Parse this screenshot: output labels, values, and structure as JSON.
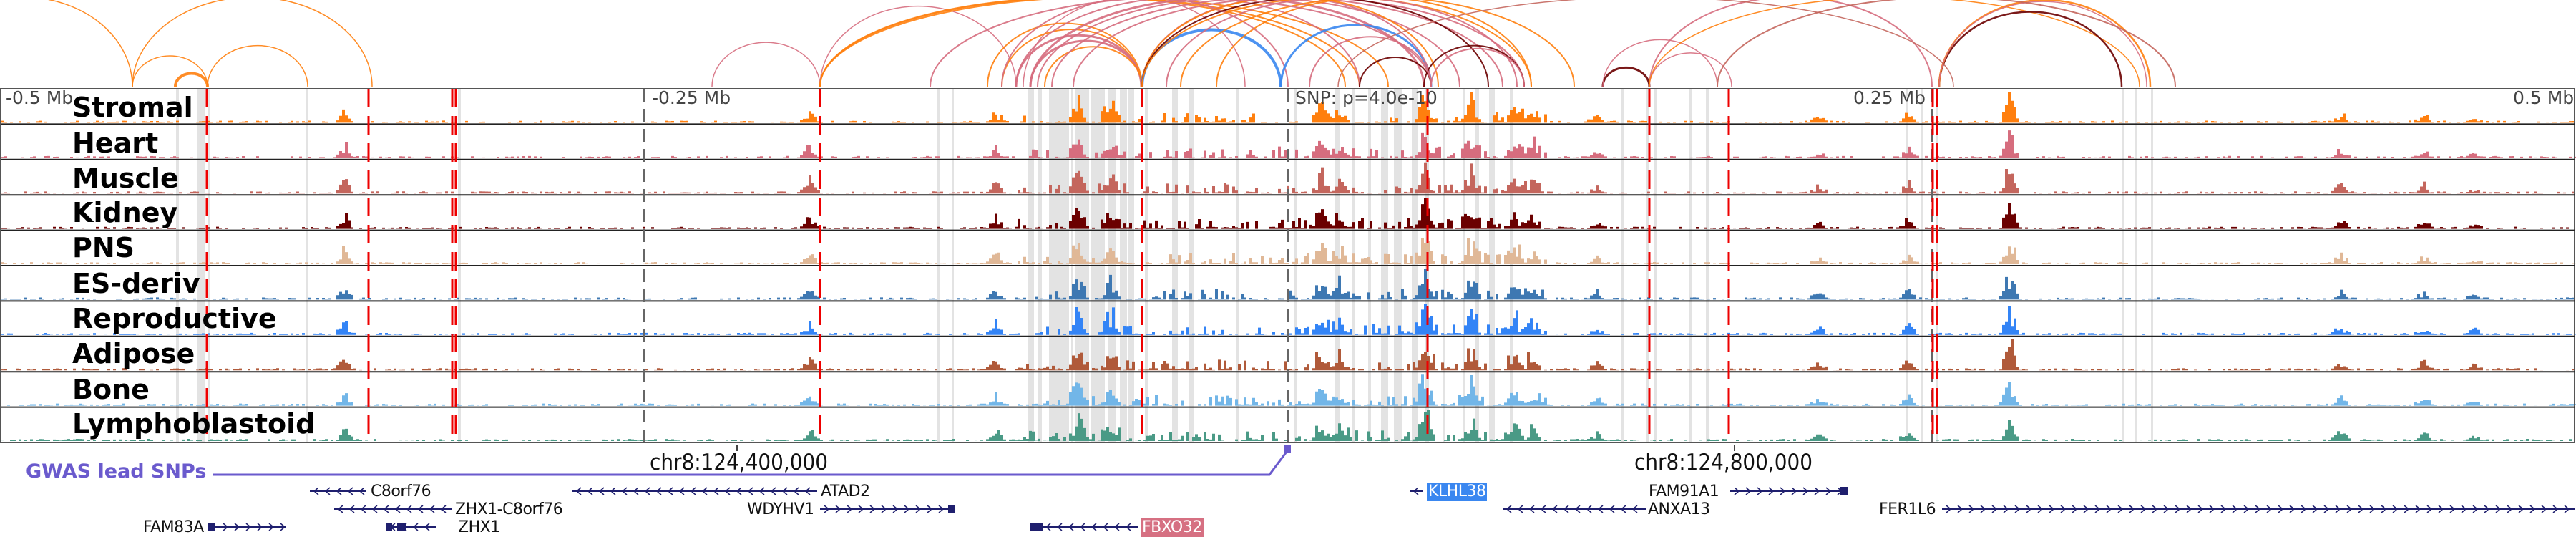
{
  "colors": {
    "frame": "#222222",
    "highlight_band": "#e3e3e3",
    "snp_line": "#ee0000",
    "gene": "#1f1f6e",
    "gwas": "#6a5acd"
  },
  "scale": {
    "left": "-0.5 Mb",
    "left_mid": "-0.25 Mb",
    "center": "SNP: p=4.0e-10",
    "right_mid": "0.25 Mb",
    "right": "0.5 Mb"
  },
  "tracks": [
    {
      "label": "Stromal",
      "color": "#ff7f0e"
    },
    {
      "label": "Heart",
      "color": "#d66d7e"
    },
    {
      "label": "Muscle",
      "color": "#c4665d"
    },
    {
      "label": "Kidney",
      "color": "#6b0000"
    },
    {
      "label": "PNS",
      "color": "#e0b897"
    },
    {
      "label": "ES-deriv",
      "color": "#3e78b2"
    },
    {
      "label": "Reproductive",
      "color": "#3384f6"
    },
    {
      "label": "Adipose",
      "color": "#b05a3a"
    },
    {
      "label": "Bone",
      "color": "#72b6e8"
    },
    {
      "label": "Lymphoblastoid",
      "color": "#4a9a86"
    }
  ],
  "coordinates": {
    "left": "chr8:124,400,000",
    "right": "chr8:124,800,000"
  },
  "gwas": {
    "label": "GWAS lead SNPs"
  },
  "genes": [
    {
      "name": "C8orf76",
      "strand": "-",
      "highlight": ""
    },
    {
      "name": "ZHX1-C8orf76",
      "strand": "-",
      "highlight": ""
    },
    {
      "name": "FAM83A",
      "strand": "+",
      "highlight": ""
    },
    {
      "name": "ZHX1",
      "strand": "-",
      "highlight": ""
    },
    {
      "name": "ATAD2",
      "strand": "-",
      "highlight": ""
    },
    {
      "name": "WDYHV1",
      "strand": "+",
      "highlight": ""
    },
    {
      "name": "FBXO32",
      "strand": "-",
      "highlight": "pink"
    },
    {
      "name": "KLHL38",
      "strand": "-",
      "highlight": "blue"
    },
    {
      "name": "FAM91A1",
      "strand": "+",
      "highlight": ""
    },
    {
      "name": "ANXA13",
      "strand": "-",
      "highlight": ""
    },
    {
      "name": "FER1L6",
      "strand": "+",
      "highlight": ""
    }
  ]
}
